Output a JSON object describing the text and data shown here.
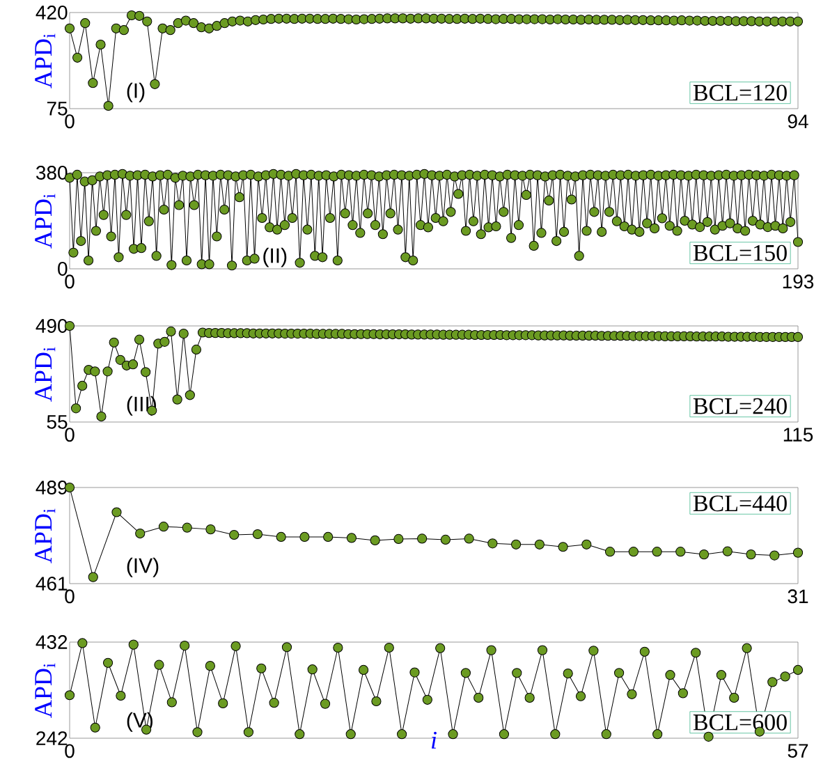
{
  "chart_data": [
    {
      "type": "line",
      "marker": "circle",
      "color": "#6b9b22",
      "ylabel": "APD$_{i}$",
      "xlim": [
        0,
        94
      ],
      "ylim": [
        75,
        420
      ],
      "xticks": [
        {
          "value": 0,
          "label": "0"
        },
        {
          "value": 94,
          "label": "94"
        }
      ],
      "yticks": [
        {
          "value": 75,
          "label": "75"
        },
        {
          "value": 420,
          "label": "420"
        }
      ],
      "annotations": [
        "(I)",
        "BCL=120"
      ],
      "x": [
        0,
        1,
        2,
        3,
        4,
        5,
        6,
        7,
        8,
        9,
        10,
        11,
        12,
        13,
        14,
        15,
        16,
        17,
        18,
        19,
        20,
        21,
        22,
        23,
        24,
        25,
        26,
        27,
        28,
        29,
        30,
        31,
        32,
        33,
        34,
        35,
        36,
        37,
        38,
        39,
        40,
        41,
        42,
        43,
        44,
        45,
        46,
        47,
        48,
        49,
        50,
        51,
        52,
        53,
        54,
        55,
        56,
        57,
        58,
        59,
        60,
        61,
        62,
        63,
        64,
        65,
        66,
        67,
        68,
        69,
        70,
        71,
        72,
        73,
        74,
        75,
        76,
        77,
        78,
        79,
        80,
        81,
        82,
        83,
        84,
        85,
        86,
        87,
        88,
        89,
        90,
        91,
        92,
        93,
        94
      ],
      "values": [
        363,
        258,
        382,
        167,
        305,
        85,
        363,
        357,
        410,
        408,
        388,
        163,
        363,
        357,
        382,
        391,
        382,
        367,
        363,
        372,
        382,
        388,
        391,
        388,
        393,
        395,
        397,
        398,
        398,
        397,
        398,
        398,
        397,
        397,
        398,
        397,
        396,
        395,
        396,
        397,
        398,
        399,
        399,
        399,
        398,
        399,
        399,
        398,
        398,
        397,
        397,
        398,
        397,
        398,
        397,
        396,
        397,
        397,
        396,
        396,
        396,
        396,
        395,
        396,
        395,
        395,
        394,
        395,
        394,
        394,
        394,
        393,
        394,
        393,
        393,
        392,
        392,
        392,
        391,
        392,
        391,
        391,
        390,
        390,
        390,
        390,
        389,
        389,
        389,
        388,
        388,
        388,
        388,
        388,
        388
      ]
    },
    {
      "type": "line",
      "marker": "circle",
      "color": "#6b9b22",
      "ylabel": "APD$_{i}$",
      "xlim": [
        0,
        193
      ],
      "ylim": [
        0,
        380
      ],
      "xticks": [
        {
          "value": 0,
          "label": "0"
        },
        {
          "value": 193,
          "label": "193"
        }
      ],
      "yticks": [
        {
          "value": 0,
          "label": "0"
        },
        {
          "value": 380,
          "label": "380"
        }
      ],
      "annotations": [
        "(II)",
        "BCL=150"
      ],
      "x": [
        0,
        1,
        2,
        3,
        4,
        5,
        6,
        7,
        8,
        9,
        10,
        11,
        12,
        13,
        14,
        15,
        16,
        17,
        18,
        19,
        20,
        21,
        22,
        23,
        24,
        25,
        26,
        27,
        28,
        29,
        30,
        31,
        32,
        33,
        34,
        35,
        36,
        37,
        38,
        39,
        40,
        41,
        42,
        43,
        44,
        45,
        46,
        47,
        48,
        49,
        50,
        51,
        52,
        53,
        54,
        55,
        56,
        57,
        58,
        59,
        60,
        61,
        62,
        63,
        64,
        65,
        66,
        67,
        68,
        69,
        70,
        71,
        72,
        73,
        74,
        75,
        76,
        77,
        78,
        79,
        80,
        81,
        82,
        83,
        84,
        85,
        86,
        87,
        88,
        89,
        90,
        91,
        92,
        93,
        94,
        95,
        96,
        97,
        98,
        99,
        100,
        101,
        102,
        103,
        104,
        105,
        106,
        107,
        108,
        109,
        110,
        111,
        112,
        113,
        114,
        115,
        116,
        117,
        118,
        119,
        120,
        121,
        122,
        123,
        124,
        125,
        126,
        127,
        128,
        129,
        130,
        131,
        132,
        133,
        134,
        135,
        136,
        137,
        138,
        139,
        140,
        141,
        142,
        143,
        144,
        145,
        146,
        147,
        148,
        149,
        150,
        151,
        152,
        153,
        154,
        155,
        156,
        157,
        158,
        159,
        160,
        161,
        162,
        163,
        164,
        165,
        166,
        167,
        168,
        169,
        170,
        171,
        172,
        173,
        174,
        175,
        176,
        177,
        178,
        179,
        180,
        181,
        182,
        183,
        184,
        185,
        186,
        187,
        188,
        189,
        190,
        191,
        192,
        193
      ],
      "values": [
        360,
        64,
        372,
        110,
        345,
        33,
        350,
        150,
        365,
        213,
        370,
        128,
        372,
        46,
        375,
        213,
        368,
        79,
        370,
        82,
        372,
        188,
        365,
        51,
        370,
        234,
        372,
        15,
        360,
        252,
        368,
        33,
        365,
        252,
        372,
        18,
        370,
        18,
        368,
        128,
        372,
        234,
        370,
        13,
        365,
        283,
        370,
        33,
        372,
        40,
        365,
        201,
        370,
        164,
        375,
        155,
        372,
        173,
        368,
        201,
        375,
        24,
        370,
        155,
        372,
        51,
        368,
        46,
        370,
        201,
        365,
        33,
        372,
        219,
        370,
        173,
        368,
        142,
        372,
        219,
        370,
        173,
        365,
        137,
        370,
        219,
        372,
        155,
        370,
        46,
        368,
        33,
        372,
        173,
        375,
        164,
        370,
        201,
        368,
        188,
        372,
        225,
        365,
        296,
        370,
        150,
        372,
        188,
        368,
        137,
        372,
        164,
        370,
        168,
        365,
        225,
        372,
        122,
        370,
        173,
        368,
        292,
        372,
        91,
        370,
        142,
        365,
        270,
        370,
        110,
        372,
        146,
        368,
        274,
        365,
        51,
        370,
        150,
        372,
        225,
        370,
        146,
        368,
        225,
        372,
        188,
        370,
        168,
        372,
        155,
        368,
        146,
        370,
        180,
        372,
        160,
        368,
        200,
        370,
        170,
        372,
        150,
        370,
        190,
        368,
        175,
        372,
        165,
        370,
        185,
        368,
        155,
        370,
        170,
        372,
        180,
        368,
        160,
        370,
        150,
        372,
        190,
        370,
        175,
        368,
        165,
        372,
        170,
        370,
        160,
        368,
        185,
        370,
        106
      ]
    },
    {
      "type": "line",
      "marker": "circle",
      "color": "#6b9b22",
      "ylabel": "APD$_{i}$",
      "xlim": [
        0,
        115
      ],
      "ylim": [
        55,
        490
      ],
      "xticks": [
        {
          "value": 0,
          "label": "0"
        },
        {
          "value": 115,
          "label": "115"
        }
      ],
      "yticks": [
        {
          "value": 55,
          "label": "55"
        },
        {
          "value": 490,
          "label": "490"
        }
      ],
      "annotations": [
        "(III)",
        "BCL=240"
      ],
      "x": [
        0,
        1,
        2,
        3,
        4,
        5,
        6,
        7,
        8,
        9,
        10,
        11,
        12,
        13,
        14,
        15,
        16,
        17,
        18,
        19,
        20,
        21,
        22,
        23,
        24,
        25,
        26,
        27,
        28,
        29,
        30,
        31,
        32,
        33,
        34,
        35,
        36,
        37,
        38,
        39,
        40,
        41,
        42,
        43,
        44,
        45,
        46,
        47,
        48,
        49,
        50,
        51,
        52,
        53,
        54,
        55,
        56,
        57,
        58,
        59,
        60,
        61,
        62,
        63,
        64,
        65,
        66,
        67,
        68,
        69,
        70,
        71,
        72,
        73,
        74,
        75,
        76,
        77,
        78,
        79,
        80,
        81,
        82,
        83,
        84,
        85,
        86,
        87,
        88,
        89,
        90,
        91,
        92,
        93,
        94,
        95,
        96,
        97,
        98,
        99,
        100,
        101,
        102,
        103,
        104,
        105,
        106,
        107,
        108,
        109,
        110,
        111,
        112,
        113,
        114,
        115
      ],
      "values": [
        490,
        117,
        219,
        291,
        284,
        80,
        284,
        415,
        336,
        311,
        316,
        428,
        281,
        107,
        410,
        418,
        465,
        157,
        455,
        177,
        383,
        460,
        458,
        458,
        458,
        457,
        457,
        457,
        457,
        456,
        456,
        456,
        456,
        456,
        455,
        455,
        455,
        455,
        455,
        454,
        454,
        454,
        454,
        454,
        453,
        453,
        453,
        453,
        453,
        452,
        452,
        452,
        452,
        452,
        451,
        451,
        451,
        451,
        451,
        450,
        450,
        450,
        450,
        450,
        449,
        449,
        449,
        449,
        449,
        448,
        448,
        448,
        448,
        448,
        447,
        447,
        447,
        447,
        447,
        446,
        446,
        446,
        446,
        446,
        445,
        445,
        445,
        445,
        445,
        444,
        444,
        444,
        444,
        444,
        443,
        443,
        443,
        443,
        443,
        442,
        442,
        442,
        442,
        442,
        441,
        441,
        441,
        441,
        441,
        440,
        440,
        440,
        440,
        440,
        440,
        440
      ]
    },
    {
      "type": "line",
      "marker": "circle",
      "color": "#6b9b22",
      "ylabel": "APD$_{i}$",
      "xlim": [
        0,
        31
      ],
      "ylim": [
        461,
        489
      ],
      "xticks": [
        {
          "value": 0,
          "label": "0"
        },
        {
          "value": 31,
          "label": "31"
        }
      ],
      "yticks": [
        {
          "value": 461,
          "label": "461"
        },
        {
          "value": 489,
          "label": "489"
        }
      ],
      "annotations": [
        "(IV)",
        "BCL=440"
      ],
      "x": [
        0,
        1,
        2,
        3,
        4,
        5,
        6,
        7,
        8,
        9,
        10,
        11,
        12,
        13,
        14,
        15,
        16,
        17,
        18,
        19,
        20,
        21,
        22,
        23,
        24,
        25,
        26,
        27,
        28,
        29,
        30,
        31
      ],
      "values": [
        489,
        462.9,
        481.8,
        475.6,
        477.6,
        477.3,
        476.8,
        475.2,
        475.4,
        474.6,
        474.6,
        474.6,
        474.3,
        473.6,
        474,
        474.1,
        473.8,
        474.1,
        472.7,
        472.4,
        472.4,
        471.7,
        472.4,
        470.3,
        470.3,
        470.3,
        470.3,
        469.5,
        470.4,
        469.5,
        469.2,
        470
      ]
    },
    {
      "type": "line",
      "marker": "circle",
      "color": "#6b9b22",
      "ylabel": "APD$_{i}$",
      "xlabel": "i",
      "xlim": [
        0,
        57
      ],
      "ylim": [
        242,
        432
      ],
      "xticks": [
        {
          "value": 0,
          "label": "0"
        },
        {
          "value": 57,
          "label": "57"
        }
      ],
      "yticks": [
        {
          "value": 242,
          "label": "242"
        },
        {
          "value": 432,
          "label": "432"
        }
      ],
      "annotations": [
        "(V)",
        "BCL=600"
      ],
      "x": [
        0,
        1,
        2,
        3,
        4,
        5,
        6,
        7,
        8,
        9,
        10,
        11,
        12,
        13,
        14,
        15,
        16,
        17,
        18,
        19,
        20,
        21,
        22,
        23,
        24,
        25,
        26,
        27,
        28,
        29,
        30,
        31,
        32,
        33,
        34,
        35,
        36,
        37,
        38,
        39,
        40,
        41,
        42,
        43,
        44,
        45,
        46,
        47,
        48,
        49,
        50,
        51,
        52,
        53,
        54,
        55,
        56,
        57
      ],
      "values": [
        327,
        430,
        263,
        391,
        326,
        427,
        259,
        387,
        313,
        425,
        254,
        385,
        311,
        424,
        254,
        380,
        312,
        422,
        250,
        378,
        310,
        421,
        250,
        377,
        315,
        421,
        250,
        372,
        318,
        420,
        250,
        371,
        322,
        416,
        250,
        371,
        322,
        416,
        250,
        370,
        325,
        415,
        250,
        371,
        329,
        413,
        250,
        367,
        331,
        411,
        245,
        367,
        322,
        420,
        255,
        353,
        364,
        377
      ]
    }
  ]
}
